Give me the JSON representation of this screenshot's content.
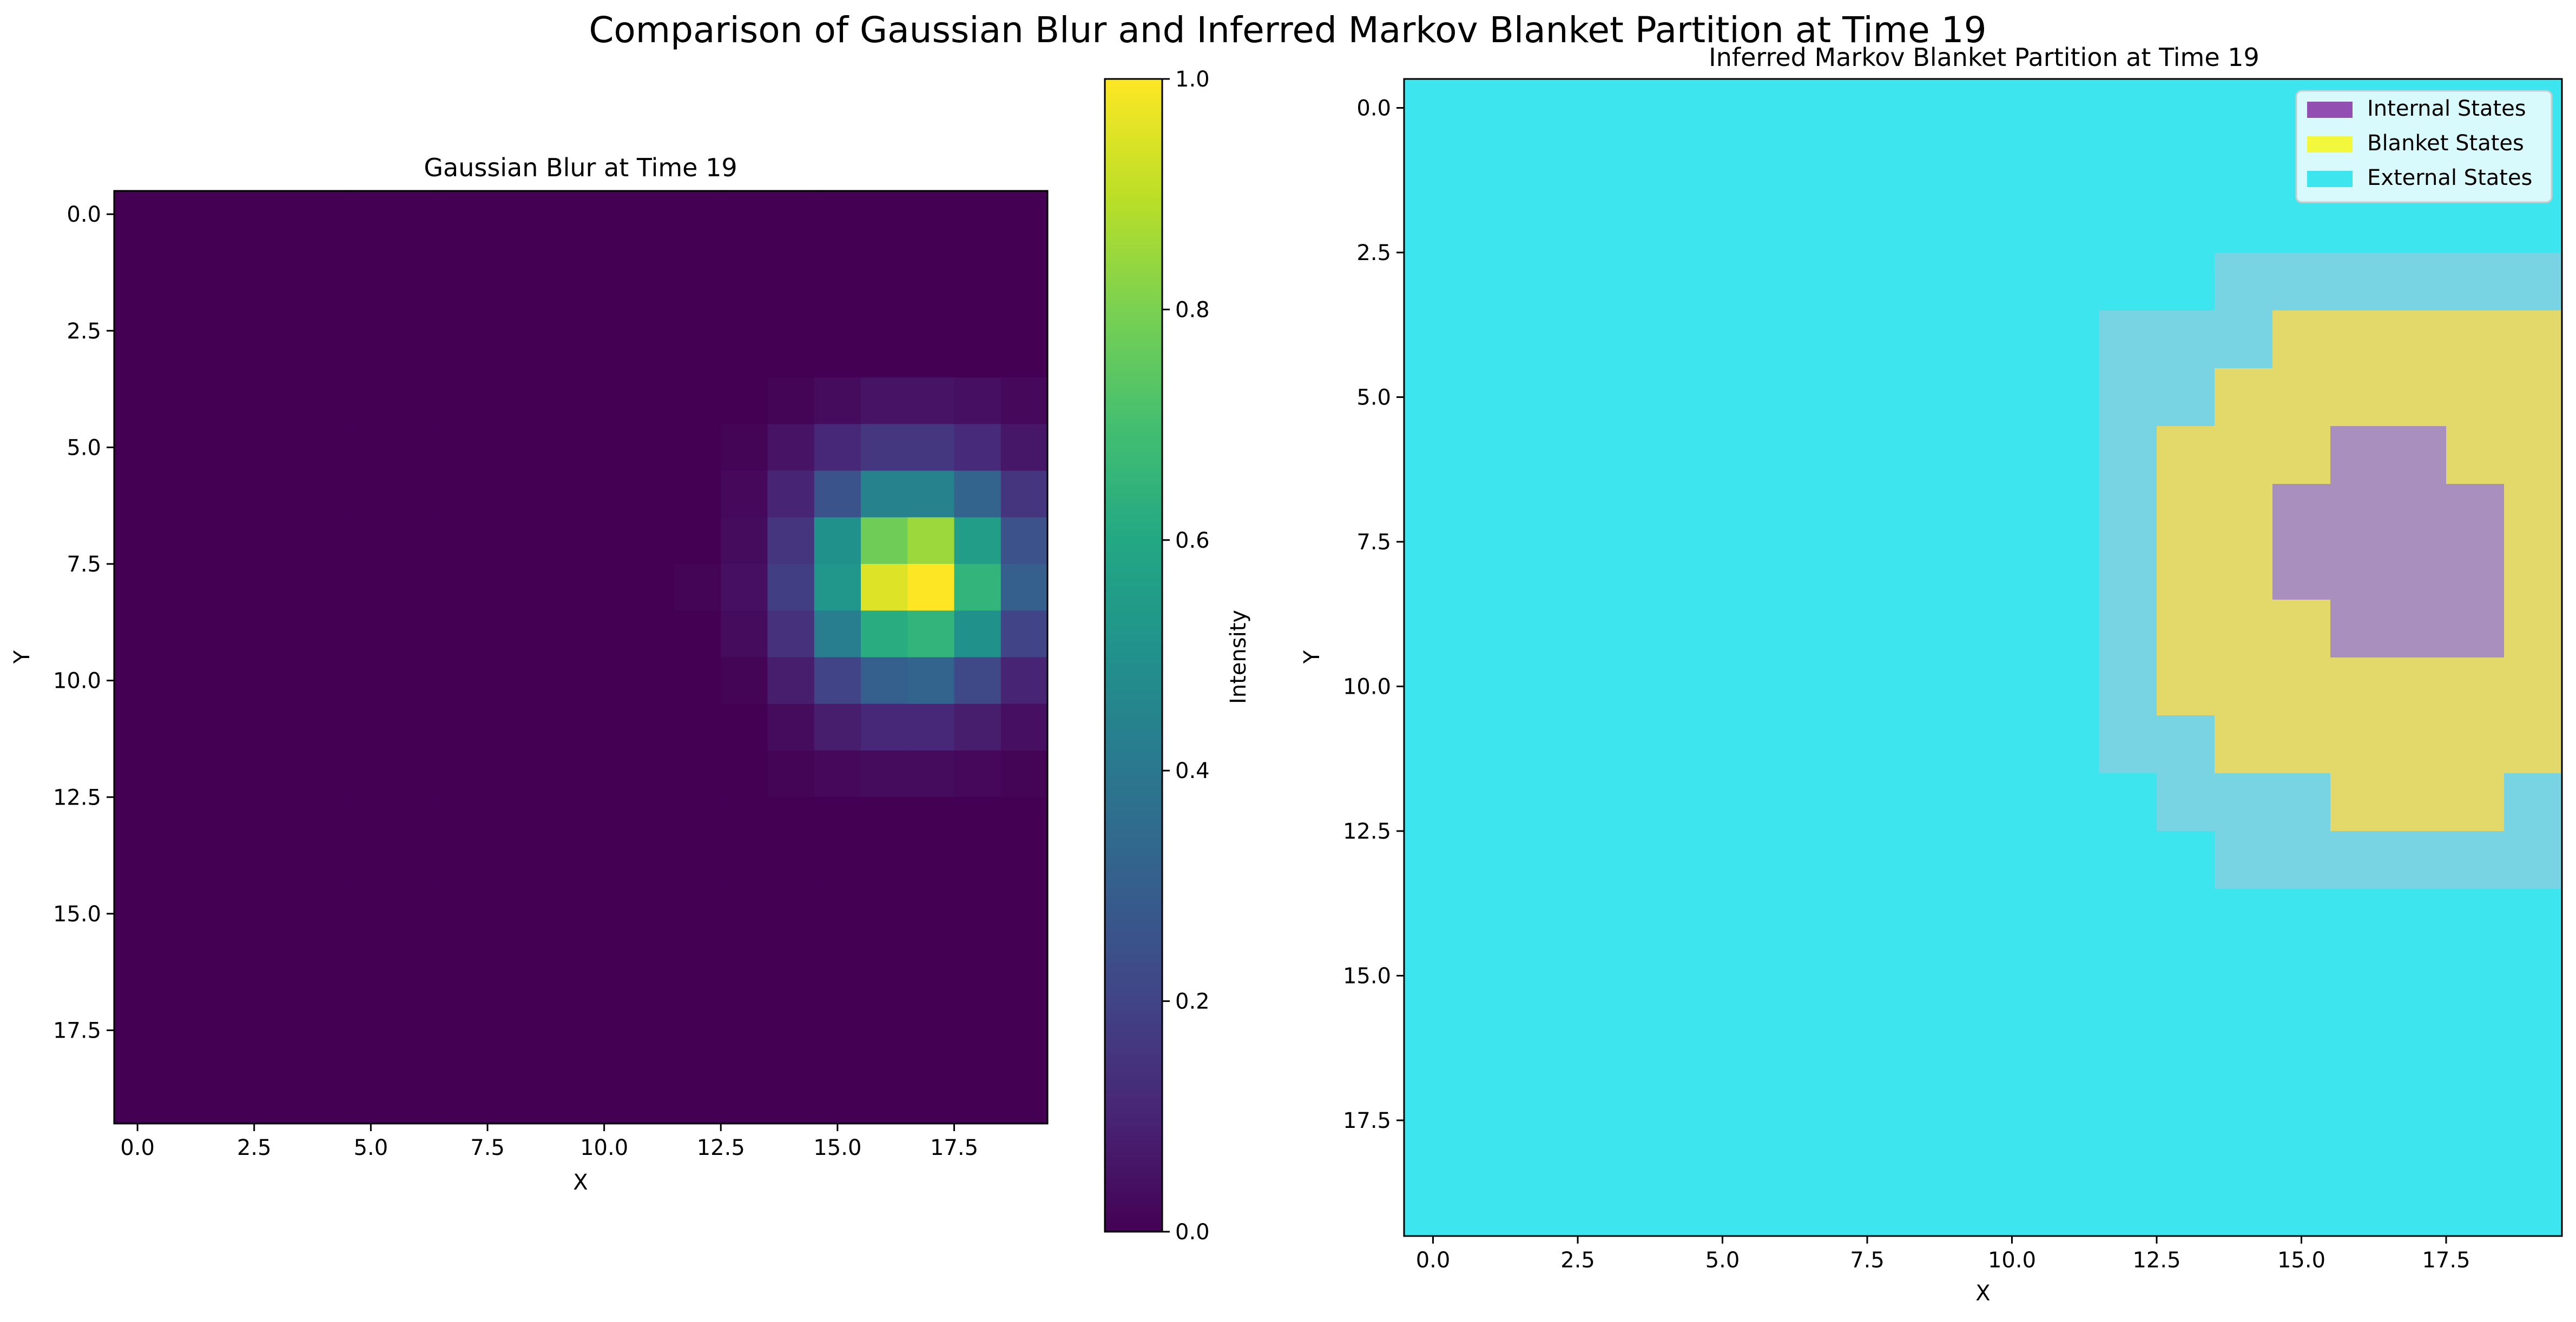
{
  "suptitle": "Comparison of Gaussian Blur and Inferred Markov Blanket Partition at Time 19",
  "chart_data": [
    {
      "type": "heatmap",
      "title": "Gaussian Blur at Time 19",
      "xlabel": "X",
      "ylabel": "Y",
      "xticks": [
        0.0,
        2.5,
        5.0,
        7.5,
        10.0,
        12.5,
        15.0,
        17.5
      ],
      "yticks": [
        0.0,
        2.5,
        5.0,
        7.5,
        10.0,
        12.5,
        15.0,
        17.5
      ],
      "xlim": [
        -0.5,
        19.5
      ],
      "ylim": [
        19.5,
        -0.5
      ],
      "colormap": "viridis",
      "colorbar": {
        "label": "Intensity",
        "ticks": [
          0.0,
          0.2,
          0.4,
          0.6,
          0.8,
          1.0
        ],
        "range": [
          0.0,
          1.0
        ]
      },
      "grid": false,
      "peak": {
        "x": 17,
        "y": 8,
        "value": 1.0
      },
      "values_rows_0_to_19": [
        [
          0,
          0,
          0,
          0,
          0,
          0,
          0,
          0,
          0,
          0,
          0,
          0,
          0,
          0,
          0,
          0,
          0,
          0,
          0,
          0
        ],
        [
          0,
          0,
          0,
          0,
          0,
          0,
          0,
          0,
          0,
          0,
          0,
          0,
          0,
          0,
          0,
          0,
          0,
          0,
          0,
          0
        ],
        [
          0,
          0,
          0,
          0,
          0,
          0,
          0,
          0,
          0,
          0,
          0,
          0,
          0,
          0,
          0,
          0,
          0,
          0,
          0,
          0
        ],
        [
          0,
          0,
          0,
          0,
          0,
          0,
          0,
          0,
          0,
          0,
          0,
          0,
          0,
          0,
          0,
          0,
          0,
          0,
          0,
          0
        ],
        [
          0,
          0,
          0,
          0,
          0,
          0,
          0,
          0,
          0,
          0,
          0,
          0,
          0,
          0,
          0.01,
          0.03,
          0.05,
          0.05,
          0.04,
          0.02
        ],
        [
          0,
          0,
          0,
          0,
          0,
          0,
          0,
          0,
          0,
          0,
          0,
          0,
          0,
          0.01,
          0.05,
          0.11,
          0.16,
          0.16,
          0.12,
          0.06
        ],
        [
          0,
          0,
          0,
          0,
          0,
          0,
          0,
          0,
          0,
          0,
          0,
          0,
          0,
          0.02,
          0.1,
          0.26,
          0.44,
          0.44,
          0.32,
          0.15
        ],
        [
          0,
          0,
          0,
          0,
          0,
          0,
          0,
          0,
          0,
          0,
          0,
          0,
          0,
          0.03,
          0.15,
          0.5,
          0.78,
          0.85,
          0.55,
          0.25
        ],
        [
          0,
          0,
          0,
          0,
          0,
          0,
          0,
          0,
          0,
          0,
          0,
          0,
          0.01,
          0.04,
          0.18,
          0.52,
          0.95,
          1.0,
          0.65,
          0.3
        ],
        [
          0,
          0,
          0,
          0,
          0,
          0,
          0,
          0,
          0,
          0,
          0,
          0,
          0,
          0.03,
          0.14,
          0.42,
          0.62,
          0.65,
          0.5,
          0.2
        ],
        [
          0,
          0,
          0,
          0,
          0,
          0,
          0,
          0,
          0,
          0,
          0,
          0,
          0,
          0.01,
          0.08,
          0.2,
          0.3,
          0.32,
          0.22,
          0.1
        ],
        [
          0,
          0,
          0,
          0,
          0,
          0,
          0,
          0,
          0,
          0,
          0,
          0,
          0,
          0,
          0.03,
          0.08,
          0.11,
          0.11,
          0.08,
          0.04
        ],
        [
          0,
          0,
          0,
          0,
          0,
          0,
          0,
          0,
          0,
          0,
          0,
          0,
          0,
          0,
          0.01,
          0.02,
          0.03,
          0.03,
          0.02,
          0.01
        ],
        [
          0,
          0,
          0,
          0,
          0,
          0,
          0,
          0,
          0,
          0,
          0,
          0,
          0,
          0,
          0,
          0,
          0,
          0,
          0,
          0
        ],
        [
          0,
          0,
          0,
          0,
          0,
          0,
          0,
          0,
          0,
          0,
          0,
          0,
          0,
          0,
          0,
          0,
          0,
          0,
          0,
          0
        ],
        [
          0,
          0,
          0,
          0,
          0,
          0,
          0,
          0,
          0,
          0,
          0,
          0,
          0,
          0,
          0,
          0,
          0,
          0,
          0,
          0
        ],
        [
          0,
          0,
          0,
          0,
          0,
          0,
          0,
          0,
          0,
          0,
          0,
          0,
          0,
          0,
          0,
          0,
          0,
          0,
          0,
          0
        ],
        [
          0,
          0,
          0,
          0,
          0,
          0,
          0,
          0,
          0,
          0,
          0,
          0,
          0,
          0,
          0,
          0,
          0,
          0,
          0,
          0
        ],
        [
          0,
          0,
          0,
          0,
          0,
          0,
          0,
          0,
          0,
          0,
          0,
          0,
          0,
          0,
          0,
          0,
          0,
          0,
          0,
          0
        ],
        [
          0,
          0,
          0,
          0,
          0,
          0,
          0,
          0,
          0,
          0,
          0,
          0,
          0,
          0,
          0,
          0,
          0,
          0,
          0,
          0
        ]
      ]
    },
    {
      "type": "heatmap",
      "title": "Inferred Markov Blanket Partition at Time 19",
      "xlabel": "X",
      "ylabel": "Y",
      "xticks": [
        0.0,
        2.5,
        5.0,
        7.5,
        10.0,
        12.5,
        15.0,
        17.5
      ],
      "yticks": [
        0.0,
        2.5,
        5.0,
        7.5,
        10.0,
        12.5,
        15.0,
        17.5
      ],
      "xlim": [
        -0.5,
        19.5
      ],
      "ylim": [
        19.5,
        -0.5
      ],
      "grid": false,
      "legend": {
        "placement": "top-right",
        "entries": [
          {
            "label": "Internal States",
            "color": "#8e44ad"
          },
          {
            "label": "Blanket States",
            "color": "#f4f83d"
          },
          {
            "label": "External States",
            "color": "#3de6ef"
          }
        ]
      },
      "category_codes": {
        "0": "Internal States",
        "1": "Blanket States",
        "2": "External States",
        "3": "External (faint tint)"
      },
      "colors": {
        "0": "#a98fbd",
        "1": "#e2d96a",
        "2": "#3de6ef",
        "3": "#78d4e2"
      },
      "categories_rows_0_to_19": [
        [
          2,
          2,
          2,
          2,
          2,
          2,
          2,
          2,
          2,
          2,
          2,
          2,
          2,
          2,
          2,
          2,
          2,
          2,
          2,
          2
        ],
        [
          2,
          2,
          2,
          2,
          2,
          2,
          2,
          2,
          2,
          2,
          2,
          2,
          2,
          2,
          2,
          2,
          2,
          2,
          2,
          2
        ],
        [
          2,
          2,
          2,
          2,
          2,
          2,
          2,
          2,
          2,
          2,
          2,
          2,
          2,
          2,
          2,
          2,
          2,
          2,
          2,
          2
        ],
        [
          2,
          2,
          2,
          2,
          2,
          2,
          2,
          2,
          2,
          2,
          2,
          2,
          2,
          2,
          3,
          3,
          3,
          3,
          3,
          3
        ],
        [
          2,
          2,
          2,
          2,
          2,
          2,
          2,
          2,
          2,
          2,
          2,
          2,
          3,
          3,
          3,
          1,
          1,
          1,
          1,
          1
        ],
        [
          2,
          2,
          2,
          2,
          2,
          2,
          2,
          2,
          2,
          2,
          2,
          2,
          3,
          3,
          1,
          1,
          1,
          1,
          1,
          1
        ],
        [
          2,
          2,
          2,
          2,
          2,
          2,
          2,
          2,
          2,
          2,
          2,
          2,
          3,
          1,
          1,
          1,
          0,
          0,
          1,
          1
        ],
        [
          2,
          2,
          2,
          2,
          2,
          2,
          2,
          2,
          2,
          2,
          2,
          2,
          3,
          1,
          1,
          0,
          0,
          0,
          0,
          1
        ],
        [
          2,
          2,
          2,
          2,
          2,
          2,
          2,
          2,
          2,
          2,
          2,
          2,
          3,
          1,
          1,
          0,
          0,
          0,
          0,
          1
        ],
        [
          2,
          2,
          2,
          2,
          2,
          2,
          2,
          2,
          2,
          2,
          2,
          2,
          3,
          1,
          1,
          1,
          0,
          0,
          0,
          1
        ],
        [
          2,
          2,
          2,
          2,
          2,
          2,
          2,
          2,
          2,
          2,
          2,
          2,
          3,
          1,
          1,
          1,
          1,
          1,
          1,
          1
        ],
        [
          2,
          2,
          2,
          2,
          2,
          2,
          2,
          2,
          2,
          2,
          2,
          2,
          3,
          3,
          1,
          1,
          1,
          1,
          1,
          1
        ],
        [
          2,
          2,
          2,
          2,
          2,
          2,
          2,
          2,
          2,
          2,
          2,
          2,
          2,
          3,
          3,
          3,
          1,
          1,
          1,
          3
        ],
        [
          2,
          2,
          2,
          2,
          2,
          2,
          2,
          2,
          2,
          2,
          2,
          2,
          2,
          2,
          3,
          3,
          3,
          3,
          3,
          3
        ],
        [
          2,
          2,
          2,
          2,
          2,
          2,
          2,
          2,
          2,
          2,
          2,
          2,
          2,
          2,
          2,
          2,
          2,
          2,
          2,
          2
        ],
        [
          2,
          2,
          2,
          2,
          2,
          2,
          2,
          2,
          2,
          2,
          2,
          2,
          2,
          2,
          2,
          2,
          2,
          2,
          2,
          2
        ],
        [
          2,
          2,
          2,
          2,
          2,
          2,
          2,
          2,
          2,
          2,
          2,
          2,
          2,
          2,
          2,
          2,
          2,
          2,
          2,
          2
        ],
        [
          2,
          2,
          2,
          2,
          2,
          2,
          2,
          2,
          2,
          2,
          2,
          2,
          2,
          2,
          2,
          2,
          2,
          2,
          2,
          2
        ],
        [
          2,
          2,
          2,
          2,
          2,
          2,
          2,
          2,
          2,
          2,
          2,
          2,
          2,
          2,
          2,
          2,
          2,
          2,
          2,
          2
        ],
        [
          2,
          2,
          2,
          2,
          2,
          2,
          2,
          2,
          2,
          2,
          2,
          2,
          2,
          2,
          2,
          2,
          2,
          2,
          2,
          2
        ]
      ]
    }
  ]
}
